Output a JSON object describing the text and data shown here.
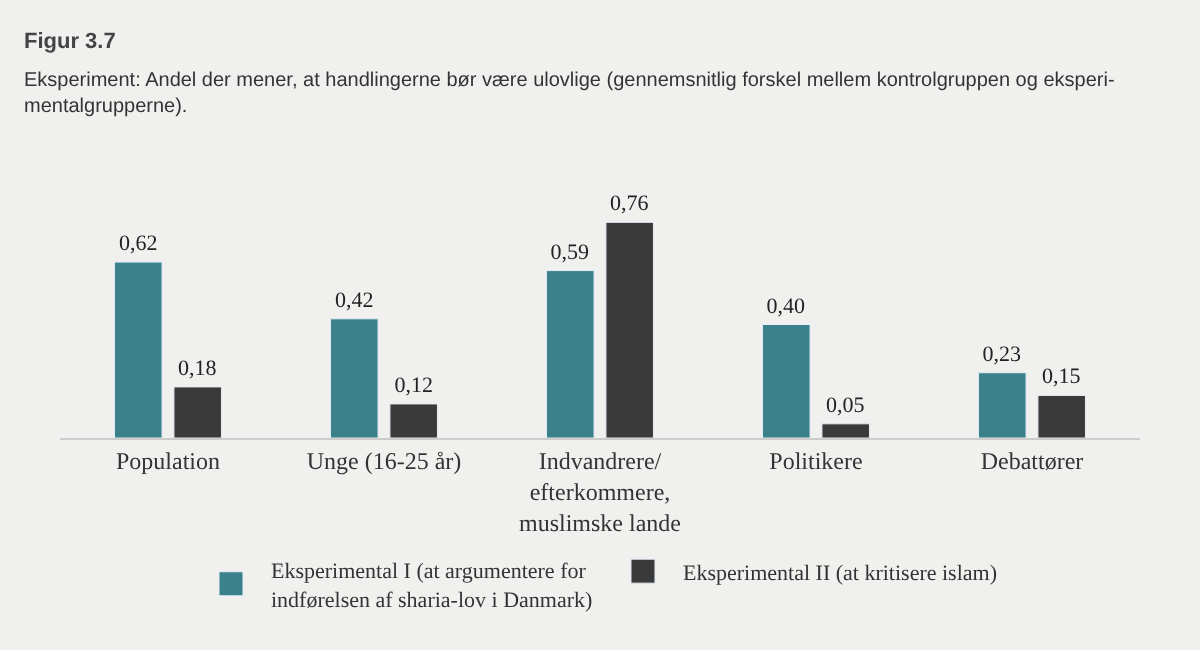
{
  "chart_data": {
    "type": "bar",
    "title": "Figur 3.7",
    "subtitle": "Eksperiment: Andel der mener, at handlingerne bør være ulovlige (gennemsnitlig forskel mellem kontrolgruppen og eksperi-\nmentalgrupperne).",
    "categories": [
      "Population",
      "Unge (16-25 år)",
      "Indvandrere/\nefterkommere,\nmuslimske lande",
      "Politikere",
      "Debattører"
    ],
    "series": [
      {
        "name": "Eksperimental I (at argumentere for\nindførelsen af sharia-lov i Danmark)",
        "color": "#3b818b",
        "values": [
          0.62,
          0.42,
          0.59,
          0.4,
          0.23
        ],
        "value_labels": [
          "0,62",
          "0,42",
          "0,59",
          "0,40",
          "0,23"
        ]
      },
      {
        "name": "Eksperimental II (at kritisere islam)",
        "color": "#3a3a3a",
        "values": [
          0.18,
          0.12,
          0.76,
          0.05,
          0.15
        ],
        "value_labels": [
          "0,18",
          "0,12",
          "0,76",
          "0,05",
          "0,15"
        ]
      }
    ],
    "legend": "bottom",
    "grid": false
  }
}
